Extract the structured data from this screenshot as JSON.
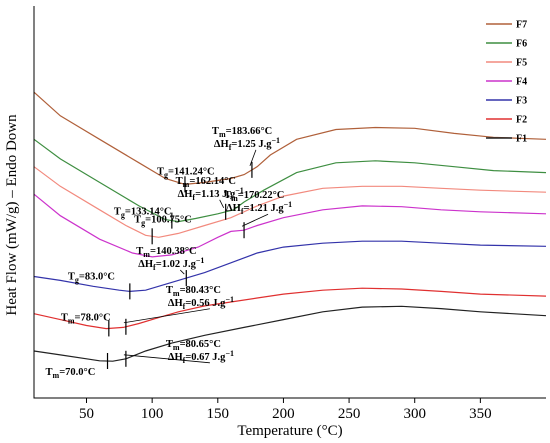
{
  "chart_data": {
    "type": "line",
    "title": "",
    "xlabel": "Temperature (°C)",
    "ylabel": "Heat Flow (mW/g) – Endo Down",
    "xlim": [
      10,
      400
    ],
    "xticks": [
      50,
      100,
      150,
      200,
      250,
      300,
      350
    ],
    "yticks_shown": false,
    "grid": false,
    "legend_position": "top-right",
    "series": [
      {
        "name": "F7",
        "color": "#b0603a",
        "points": [
          [
            10,
            0.78
          ],
          [
            30,
            0.72
          ],
          [
            60,
            0.66
          ],
          [
            90,
            0.6
          ],
          [
            110,
            0.56
          ],
          [
            125,
            0.545
          ],
          [
            140,
            0.55
          ],
          [
            160,
            0.56
          ],
          [
            170,
            0.57
          ],
          [
            180,
            0.59
          ],
          [
            190,
            0.62
          ],
          [
            210,
            0.66
          ],
          [
            240,
            0.685
          ],
          [
            270,
            0.69
          ],
          [
            300,
            0.688
          ],
          [
            330,
            0.675
          ],
          [
            360,
            0.665
          ],
          [
            400,
            0.66
          ]
        ]
      },
      {
        "name": "F6",
        "color": "#3e8e41",
        "points": [
          [
            10,
            0.66
          ],
          [
            30,
            0.61
          ],
          [
            60,
            0.55
          ],
          [
            90,
            0.49
          ],
          [
            110,
            0.455
          ],
          [
            120,
            0.45
          ],
          [
            133,
            0.458
          ],
          [
            150,
            0.47
          ],
          [
            162,
            0.48
          ],
          [
            170,
            0.5
          ],
          [
            185,
            0.53
          ],
          [
            210,
            0.575
          ],
          [
            240,
            0.6
          ],
          [
            270,
            0.605
          ],
          [
            300,
            0.6
          ],
          [
            330,
            0.59
          ],
          [
            360,
            0.58
          ],
          [
            400,
            0.575
          ]
        ]
      },
      {
        "name": "F5",
        "color": "#f28a7e",
        "points": [
          [
            10,
            0.59
          ],
          [
            30,
            0.54
          ],
          [
            60,
            0.48
          ],
          [
            80,
            0.44
          ],
          [
            95,
            0.415
          ],
          [
            105,
            0.41
          ],
          [
            120,
            0.42
          ],
          [
            140,
            0.44
          ],
          [
            160,
            0.46
          ],
          [
            180,
            0.49
          ],
          [
            200,
            0.515
          ],
          [
            230,
            0.535
          ],
          [
            260,
            0.54
          ],
          [
            290,
            0.54
          ],
          [
            320,
            0.535
          ],
          [
            350,
            0.53
          ],
          [
            400,
            0.525
          ]
        ]
      },
      {
        "name": "F4",
        "color": "#cc33cc",
        "points": [
          [
            10,
            0.52
          ],
          [
            30,
            0.465
          ],
          [
            60,
            0.405
          ],
          [
            85,
            0.37
          ],
          [
            100,
            0.36
          ],
          [
            115,
            0.365
          ],
          [
            135,
            0.385
          ],
          [
            150,
            0.41
          ],
          [
            160,
            0.425
          ],
          [
            170,
            0.428
          ],
          [
            180,
            0.44
          ],
          [
            200,
            0.46
          ],
          [
            230,
            0.48
          ],
          [
            260,
            0.49
          ],
          [
            290,
            0.488
          ],
          [
            320,
            0.48
          ],
          [
            350,
            0.475
          ],
          [
            400,
            0.47
          ]
        ]
      },
      {
        "name": "F3",
        "color": "#3333aa",
        "points": [
          [
            10,
            0.31
          ],
          [
            30,
            0.3
          ],
          [
            55,
            0.285
          ],
          [
            75,
            0.275
          ],
          [
            83,
            0.272
          ],
          [
            95,
            0.275
          ],
          [
            110,
            0.29
          ],
          [
            125,
            0.305
          ],
          [
            140,
            0.32
          ],
          [
            160,
            0.345
          ],
          [
            180,
            0.37
          ],
          [
            200,
            0.385
          ],
          [
            230,
            0.395
          ],
          [
            260,
            0.4
          ],
          [
            290,
            0.4
          ],
          [
            320,
            0.395
          ],
          [
            350,
            0.39
          ],
          [
            400,
            0.387
          ]
        ]
      },
      {
        "name": "F2",
        "color": "#e03030",
        "points": [
          [
            10,
            0.215
          ],
          [
            30,
            0.2
          ],
          [
            50,
            0.185
          ],
          [
            65,
            0.177
          ],
          [
            78,
            0.18
          ],
          [
            90,
            0.19
          ],
          [
            105,
            0.205
          ],
          [
            120,
            0.22
          ],
          [
            140,
            0.235
          ],
          [
            160,
            0.245
          ],
          [
            180,
            0.255
          ],
          [
            200,
            0.265
          ],
          [
            230,
            0.275
          ],
          [
            260,
            0.28
          ],
          [
            290,
            0.278
          ],
          [
            320,
            0.272
          ],
          [
            350,
            0.265
          ],
          [
            400,
            0.26
          ]
        ]
      },
      {
        "name": "F1",
        "color": "#222222",
        "points": [
          [
            10,
            0.12
          ],
          [
            30,
            0.11
          ],
          [
            50,
            0.1
          ],
          [
            60,
            0.095
          ],
          [
            70,
            0.094
          ],
          [
            80,
            0.1
          ],
          [
            95,
            0.12
          ],
          [
            115,
            0.14
          ],
          [
            140,
            0.16
          ],
          [
            170,
            0.18
          ],
          [
            200,
            0.2
          ],
          [
            230,
            0.22
          ],
          [
            260,
            0.232
          ],
          [
            290,
            0.234
          ],
          [
            320,
            0.228
          ],
          [
            350,
            0.22
          ],
          [
            400,
            0.21
          ]
        ]
      }
    ],
    "annotations": [
      {
        "lines": [
          "T",
          "g",
          "=141.24°C"
        ],
        "x": 125,
        "y": 0.545,
        "kind": "tg",
        "series": "F7"
      },
      {
        "lines": [
          "T",
          "m",
          "=183.66°C",
          "ΔH",
          "f",
          "=1.25 J.g",
          "−1"
        ],
        "x": 176,
        "y": 0.575,
        "kind": "tm",
        "series": "F7"
      },
      {
        "lines": [
          "T",
          "g",
          "=133.14°C"
        ],
        "x": 115,
        "y": 0.455,
        "kind": "tg",
        "series": "F6"
      },
      {
        "lines": [
          "T",
          "m",
          "=162.14°C",
          "ΔH",
          "f",
          "=1.13 J.g",
          "−1"
        ],
        "x": 156,
        "y": 0.475,
        "kind": "tm",
        "series": "F6"
      },
      {
        "lines": [
          "T",
          "g",
          "=100.75°C"
        ],
        "x": 100,
        "y": 0.41,
        "kind": "tg",
        "series": "F5"
      },
      {
        "lines": [
          "T",
          "m",
          "=170.22°C",
          "ΔH",
          "f",
          "=1.21 J.g",
          "−1"
        ],
        "x": 170,
        "y": 0.428,
        "kind": "tm",
        "series": "F4"
      },
      {
        "lines": [
          "T",
          "g",
          "=83.0°C"
        ],
        "x": 83,
        "y": 0.272,
        "kind": "tg",
        "series": "F3"
      },
      {
        "lines": [
          "T",
          "m",
          "=140.38°C",
          "ΔH",
          "f",
          "=1.02 J.g",
          "−1"
        ],
        "x": 126,
        "y": 0.3,
        "kind": "tm",
        "series": "F3"
      },
      {
        "lines": [
          "T",
          "m",
          "=78.0°C"
        ],
        "x": 67,
        "y": 0.18,
        "kind": "tg",
        "series": "F2"
      },
      {
        "lines": [
          "T",
          "m",
          "=80.43°C",
          "ΔH",
          "f",
          "=0.56 J.g",
          "−1"
        ],
        "x": 80,
        "y": 0.185,
        "kind": "tm",
        "series": "F2"
      },
      {
        "lines": [
          "T",
          "m",
          "=70.0°C"
        ],
        "x": 66,
        "y": 0.094,
        "kind": "tg",
        "series": "F1"
      },
      {
        "lines": [
          "T",
          "m",
          "=80.65°C",
          "ΔH",
          "f",
          "=0.67 J.g",
          "−1"
        ],
        "x": 80,
        "y": 0.1,
        "kind": "tm",
        "series": "F1"
      }
    ]
  }
}
